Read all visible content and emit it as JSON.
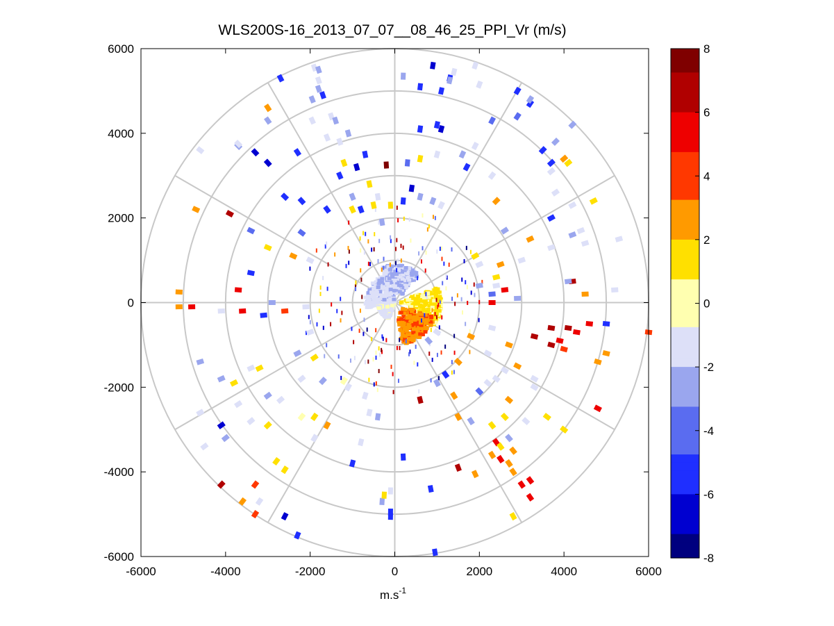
{
  "chart_data": {
    "type": "scatter",
    "subtype": "polar-ppi",
    "title": "WLS200S-16_2013_07_07__08_46_25_PPI_Vr (m/s)",
    "xlabel": "m.s",
    "xlabel_superscript": "-1",
    "ylabel": "",
    "xlim": [
      -6000,
      6000
    ],
    "ylim": [
      -6000,
      6000
    ],
    "x_ticks": [
      -6000,
      -4000,
      -2000,
      0,
      2000,
      4000,
      6000
    ],
    "y_ticks": [
      -6000,
      -4000,
      -2000,
      0,
      2000,
      4000,
      6000
    ],
    "x_tick_labels": [
      "-6000",
      "-4000",
      "-2000",
      "0",
      "2000",
      "4000",
      "6000"
    ],
    "y_tick_labels": [
      "-6000",
      "-4000",
      "-2000",
      "0",
      "2000",
      "4000",
      "6000"
    ],
    "polar_grid": {
      "ring_radii": [
        1000,
        2000,
        3000,
        4000,
        5000,
        6000
      ],
      "spoke_angles_deg": [
        0,
        30,
        60,
        90,
        120,
        150,
        180,
        210,
        240,
        270,
        300,
        330
      ],
      "grid": true
    },
    "colorbar": {
      "min": -8,
      "max": 8,
      "ticks": [
        8,
        6,
        4,
        2,
        0,
        -2,
        -4,
        -6,
        -8
      ],
      "tick_labels": [
        "8",
        "6",
        "4",
        "2",
        "0",
        "-2",
        "-4",
        "-6",
        "-8"
      ],
      "colors": [
        "#00007f",
        "#0000d0",
        "#1f2fff",
        "#5a6cf0",
        "#9aa6ee",
        "#dde0f8",
        "#ffffb0",
        "#ffe000",
        "#ff9a00",
        "#ff3800",
        "#ee0000",
        "#b00000",
        "#7f0000"
      ]
    },
    "points": [
      {
        "x": -1900,
        "y": 5550,
        "v": -1.5
      },
      {
        "x": -2700,
        "y": 5300,
        "v": -6
      },
      {
        "x": -1950,
        "y": 4800,
        "v": -3
      },
      {
        "x": -1500,
        "y": 4400,
        "v": -1.5
      },
      {
        "x": -3000,
        "y": 4300,
        "v": -3
      },
      {
        "x": -3700,
        "y": 3700,
        "v": -3
      },
      {
        "x": -3300,
        "y": 3550,
        "v": -7
      },
      {
        "x": -2300,
        "y": 3550,
        "v": -5
      },
      {
        "x": -1600,
        "y": 3900,
        "v": -1
      },
      {
        "x": -1300,
        "y": 3800,
        "v": -2
      },
      {
        "x": -3000,
        "y": 3300,
        "v": -7
      },
      {
        "x": -2600,
        "y": 2500,
        "v": -5
      },
      {
        "x": -1950,
        "y": 4300,
        "v": -1.5
      },
      {
        "x": -3000,
        "y": 4600,
        "v": 2.5
      },
      {
        "x": -2200,
        "y": 2400,
        "v": -6
      },
      {
        "x": -2200,
        "y": 1650,
        "v": -4
      },
      {
        "x": -3900,
        "y": 2100,
        "v": 6.5
      },
      {
        "x": -4700,
        "y": 2200,
        "v": 2
      },
      {
        "x": -3400,
        "y": 1700,
        "v": -4
      },
      {
        "x": -3000,
        "y": 1300,
        "v": 1
      },
      {
        "x": -3400,
        "y": 700,
        "v": -5
      },
      {
        "x": -2400,
        "y": 1100,
        "v": 3
      },
      {
        "x": -2000,
        "y": 1000,
        "v": -2
      },
      {
        "x": -3700,
        "y": 300,
        "v": 5
      },
      {
        "x": -5100,
        "y": 250,
        "v": 2
      },
      {
        "x": -5100,
        "y": -100,
        "v": 3
      },
      {
        "x": -4800,
        "y": -100,
        "v": 5
      },
      {
        "x": -4100,
        "y": -200,
        "v": -2
      },
      {
        "x": -3600,
        "y": -200,
        "v": 5
      },
      {
        "x": -3100,
        "y": -300,
        "v": -6
      },
      {
        "x": -2900,
        "y": 0,
        "v": -3
      },
      {
        "x": -2600,
        "y": -200,
        "v": 4
      },
      {
        "x": -2100,
        "y": -100,
        "v": -2
      },
      {
        "x": -2000,
        "y": -700,
        "v": -2
      },
      {
        "x": -1900,
        "y": -1300,
        "v": 1
      },
      {
        "x": -2300,
        "y": -1200,
        "v": -3
      },
      {
        "x": -2200,
        "y": -1800,
        "v": -2
      },
      {
        "x": -1700,
        "y": -1850,
        "v": -3
      },
      {
        "x": -1200,
        "y": -1850,
        "v": -0.5
      },
      {
        "x": -3200,
        "y": -1550,
        "v": 1
      },
      {
        "x": -3400,
        "y": -1550,
        "v": -1.5
      },
      {
        "x": -3000,
        "y": -2200,
        "v": -3
      },
      {
        "x": -2700,
        "y": -2300,
        "v": -2
      },
      {
        "x": -2200,
        "y": -2700,
        "v": -0.5
      },
      {
        "x": -3000,
        "y": -2900,
        "v": 1
      },
      {
        "x": -3400,
        "y": -2800,
        "v": -1
      },
      {
        "x": -4600,
        "y": -1400,
        "v": -3
      },
      {
        "x": -4100,
        "y": -1800,
        "v": -3
      },
      {
        "x": -3800,
        "y": -1900,
        "v": 1
      },
      {
        "x": -3700,
        "y": -2400,
        "v": -1.5
      },
      {
        "x": -4600,
        "y": -2600,
        "v": -1.5
      },
      {
        "x": -4100,
        "y": -2900,
        "v": -7
      },
      {
        "x": -4000,
        "y": -3200,
        "v": -3
      },
      {
        "x": -4500,
        "y": -3400,
        "v": -1
      },
      {
        "x": -2800,
        "y": -3750,
        "v": 1
      },
      {
        "x": -2600,
        "y": -3950,
        "v": 1
      },
      {
        "x": -4100,
        "y": -4300,
        "v": 6
      },
      {
        "x": -3300,
        "y": -4300,
        "v": 3.5
      },
      {
        "x": -3600,
        "y": -4700,
        "v": 3
      },
      {
        "x": -3200,
        "y": -4700,
        "v": -1
      },
      {
        "x": -3300,
        "y": -5000,
        "v": 4
      },
      {
        "x": -2600,
        "y": -5050,
        "v": -7
      },
      {
        "x": -2300,
        "y": -5500,
        "v": -6
      },
      {
        "x": -1900,
        "y": -3200,
        "v": -1
      },
      {
        "x": -1600,
        "y": -2900,
        "v": 2
      },
      {
        "x": -1900,
        "y": -2700,
        "v": 1
      },
      {
        "x": -1000,
        "y": -3800,
        "v": -5
      },
      {
        "x": -800,
        "y": -3300,
        "v": -2
      },
      {
        "x": -600,
        "y": -2600,
        "v": -2
      },
      {
        "x": -400,
        "y": -2700,
        "v": -3
      },
      {
        "x": -1100,
        "y": -2000,
        "v": -1
      },
      {
        "x": -700,
        "y": -2200,
        "v": -1
      },
      {
        "x": -300,
        "y": -4700,
        "v": -3
      },
      {
        "x": -250,
        "y": -4550,
        "v": 1
      },
      {
        "x": -100,
        "y": -4450,
        "v": -1
      },
      {
        "x": -100,
        "y": -4950,
        "v": -6
      },
      {
        "x": -100,
        "y": -5050,
        "v": -6
      },
      {
        "x": 200,
        "y": -3650,
        "v": -6
      },
      {
        "x": 850,
        "y": -4400,
        "v": -6
      },
      {
        "x": 950,
        "y": -5900,
        "v": -6
      },
      {
        "x": 1500,
        "y": -3900,
        "v": 7
      },
      {
        "x": 1900,
        "y": -4050,
        "v": 3
      },
      {
        "x": 2300,
        "y": -3600,
        "v": 2
      },
      {
        "x": 2400,
        "y": -3300,
        "v": 5
      },
      {
        "x": 2700,
        "y": -3200,
        "v": -3
      },
      {
        "x": 2300,
        "y": -2900,
        "v": 1
      },
      {
        "x": 1800,
        "y": -2800,
        "v": -3
      },
      {
        "x": 1500,
        "y": -2700,
        "v": 3
      },
      {
        "x": 2600,
        "y": -2700,
        "v": 1
      },
      {
        "x": 2700,
        "y": -2300,
        "v": 2
      },
      {
        "x": 3100,
        "y": -2800,
        "v": -2
      },
      {
        "x": 3600,
        "y": -2700,
        "v": 1
      },
      {
        "x": 4000,
        "y": -3000,
        "v": 1
      },
      {
        "x": 2500,
        "y": -3400,
        "v": 1
      },
      {
        "x": 2500,
        "y": -3700,
        "v": 5
      },
      {
        "x": 2700,
        "y": -3800,
        "v": 3
      },
      {
        "x": 2800,
        "y": -3500,
        "v": 3
      },
      {
        "x": 2800,
        "y": -4000,
        "v": 2
      },
      {
        "x": 3200,
        "y": -4200,
        "v": 5
      },
      {
        "x": 3000,
        "y": -4300,
        "v": 5
      },
      {
        "x": 3200,
        "y": -4600,
        "v": 5
      },
      {
        "x": 2800,
        "y": -5050,
        "v": 1
      },
      {
        "x": 1200,
        "y": -1700,
        "v": -5
      },
      {
        "x": 1000,
        "y": -1900,
        "v": -3
      },
      {
        "x": 1400,
        "y": -2200,
        "v": 3
      },
      {
        "x": 600,
        "y": -2300,
        "v": 6
      },
      {
        "x": 2000,
        "y": -2100,
        "v": -4
      },
      {
        "x": 2200,
        "y": -1900,
        "v": -2
      },
      {
        "x": 2400,
        "y": -1800,
        "v": -2
      },
      {
        "x": 2600,
        "y": -1600,
        "v": -1
      },
      {
        "x": 2900,
        "y": -1500,
        "v": 3
      },
      {
        "x": 3300,
        "y": -2000,
        "v": -2
      },
      {
        "x": 3300,
        "y": -1800,
        "v": -1.5
      },
      {
        "x": 3700,
        "y": -1000,
        "v": 6
      },
      {
        "x": 3900,
        "y": -900,
        "v": 5
      },
      {
        "x": 4100,
        "y": -600,
        "v": 7
      },
      {
        "x": 3700,
        "y": -600,
        "v": 7
      },
      {
        "x": 3300,
        "y": -800,
        "v": 6
      },
      {
        "x": 4000,
        "y": -1100,
        "v": 4
      },
      {
        "x": 4300,
        "y": -700,
        "v": 5
      },
      {
        "x": 4600,
        "y": -500,
        "v": 5
      },
      {
        "x": 5000,
        "y": -500,
        "v": -5
      },
      {
        "x": 5000,
        "y": -1200,
        "v": 3
      },
      {
        "x": 4800,
        "y": -1400,
        "v": 3
      },
      {
        "x": 4800,
        "y": -2500,
        "v": 5
      },
      {
        "x": 6000,
        "y": -700,
        "v": 4
      },
      {
        "x": 1000,
        "y": -700,
        "v": -2
      },
      {
        "x": 800,
        "y": -900,
        "v": -3
      },
      {
        "x": 2300,
        "y": -600,
        "v": -2
      },
      {
        "x": 2700,
        "y": -1000,
        "v": 3
      },
      {
        "x": 2200,
        "y": -1200,
        "v": -2
      },
      {
        "x": 1800,
        "y": -800,
        "v": 3
      },
      {
        "x": 1500,
        "y": -1400,
        "v": 2
      },
      {
        "x": 2300,
        "y": 0,
        "v": 5
      },
      {
        "x": 2300,
        "y": 200,
        "v": -4
      },
      {
        "x": 2000,
        "y": 400,
        "v": -3
      },
      {
        "x": 2400,
        "y": 600,
        "v": 1
      },
      {
        "x": 2000,
        "y": 900,
        "v": -2
      },
      {
        "x": 1900,
        "y": 1100,
        "v": 1
      },
      {
        "x": 2500,
        "y": 900,
        "v": 3
      },
      {
        "x": 2400,
        "y": 400,
        "v": -1
      },
      {
        "x": 2600,
        "y": 300,
        "v": 5
      },
      {
        "x": 2900,
        "y": 100,
        "v": -3
      },
      {
        "x": 3000,
        "y": 1000,
        "v": -2
      },
      {
        "x": 2600,
        "y": 1700,
        "v": -3
      },
      {
        "x": 3200,
        "y": 1500,
        "v": 2
      },
      {
        "x": 3700,
        "y": 1300,
        "v": -2
      },
      {
        "x": 4200,
        "y": 1600,
        "v": -3
      },
      {
        "x": 4500,
        "y": 1400,
        "v": -2
      },
      {
        "x": 5300,
        "y": 1500,
        "v": -1.5
      },
      {
        "x": 4400,
        "y": 1700,
        "v": -1
      },
      {
        "x": 4200,
        "y": 500,
        "v": 7
      },
      {
        "x": 4100,
        "y": 500,
        "v": -3
      },
      {
        "x": 4500,
        "y": 200,
        "v": 2
      },
      {
        "x": 5200,
        "y": 300,
        "v": -2
      },
      {
        "x": 3700,
        "y": 2000,
        "v": -5
      },
      {
        "x": 4200,
        "y": 2300,
        "v": -2
      },
      {
        "x": 4700,
        "y": 2400,
        "v": 1
      },
      {
        "x": 3800,
        "y": 2600,
        "v": -1.5
      },
      {
        "x": 3700,
        "y": 3100,
        "v": -1
      },
      {
        "x": 4000,
        "y": 3400,
        "v": 2
      },
      {
        "x": 4100,
        "y": 3300,
        "v": 1
      },
      {
        "x": 3700,
        "y": 3300,
        "v": -5
      },
      {
        "x": 3500,
        "y": 3600,
        "v": -6
      },
      {
        "x": 3800,
        "y": 3800,
        "v": -3
      },
      {
        "x": 4200,
        "y": 4200,
        "v": -3
      },
      {
        "x": 3200,
        "y": 4700,
        "v": -6
      },
      {
        "x": 2900,
        "y": 4400,
        "v": -4
      },
      {
        "x": 2300,
        "y": 4300,
        "v": -4
      },
      {
        "x": 1900,
        "y": 3700,
        "v": -1
      },
      {
        "x": 1600,
        "y": 3500,
        "v": -3
      },
      {
        "x": 1700,
        "y": 3200,
        "v": -6
      },
      {
        "x": 2300,
        "y": 3000,
        "v": -2
      },
      {
        "x": 2400,
        "y": 2400,
        "v": 3
      },
      {
        "x": 1000,
        "y": 4200,
        "v": -6
      },
      {
        "x": 1100,
        "y": 4100,
        "v": -7
      },
      {
        "x": 600,
        "y": 4100,
        "v": -6
      },
      {
        "x": 1000,
        "y": 3500,
        "v": -2
      },
      {
        "x": 600,
        "y": 3400,
        "v": 1
      },
      {
        "x": 300,
        "y": 3300,
        "v": -4
      },
      {
        "x": -200,
        "y": 3250,
        "v": 8
      },
      {
        "x": -700,
        "y": 3500,
        "v": -6
      },
      {
        "x": -900,
        "y": 3200,
        "v": -7
      },
      {
        "x": -1100,
        "y": 4000,
        "v": -3
      },
      {
        "x": -1200,
        "y": 3300,
        "v": 1
      },
      {
        "x": -1300,
        "y": 3000,
        "v": -5
      },
      {
        "x": -1000,
        "y": 2500,
        "v": -3
      },
      {
        "x": -600,
        "y": 2800,
        "v": 1
      },
      {
        "x": -400,
        "y": 2500,
        "v": -1.5
      },
      {
        "x": -500,
        "y": 2300,
        "v": 1
      },
      {
        "x": -100,
        "y": 2300,
        "v": 1
      },
      {
        "x": 200,
        "y": 2400,
        "v": -5
      },
      {
        "x": 400,
        "y": 2700,
        "v": -7
      },
      {
        "x": 600,
        "y": 2500,
        "v": -3
      },
      {
        "x": 900,
        "y": 2400,
        "v": -3
      },
      {
        "x": 1100,
        "y": 2300,
        "v": -2
      },
      {
        "x": -300,
        "y": 1900,
        "v": -3
      },
      {
        "x": -800,
        "y": 2200,
        "v": -6
      },
      {
        "x": -1000,
        "y": 2200,
        "v": 1
      },
      {
        "x": -1600,
        "y": 2200,
        "v": -5
      },
      {
        "x": 200,
        "y": 5350,
        "v": -3
      },
      {
        "x": 900,
        "y": 5600,
        "v": -7
      },
      {
        "x": 1300,
        "y": 5300,
        "v": -5
      },
      {
        "x": 1900,
        "y": 5600,
        "v": -1
      },
      {
        "x": 1100,
        "y": 5000,
        "v": -6
      },
      {
        "x": 600,
        "y": 5100,
        "v": -6
      },
      {
        "x": 1300,
        "y": 5250,
        "v": -3
      },
      {
        "x": 2000,
        "y": 5150,
        "v": -1.5
      },
      {
        "x": 2900,
        "y": 5000,
        "v": -6
      },
      {
        "x": 3200,
        "y": 4800,
        "v": -3
      },
      {
        "x": 1400,
        "y": 5450,
        "v": -2
      },
      {
        "x": -1800,
        "y": 5500,
        "v": -3
      },
      {
        "x": -1800,
        "y": 5250,
        "v": -2
      },
      {
        "x": -1700,
        "y": 4900,
        "v": -6
      },
      {
        "x": -1400,
        "y": 4300,
        "v": -3
      },
      {
        "x": -3700,
        "y": 3750,
        "v": -2
      },
      {
        "x": -4600,
        "y": 3600,
        "v": -2
      },
      {
        "x": -1800,
        "y": 5050,
        "v": -3
      }
    ],
    "central_cluster": [
      {
        "angle_from_deg": 90,
        "angle_to_deg": 190,
        "r_inner": 0,
        "r_outer": 700,
        "v": -1.5
      },
      {
        "angle_from_deg": 50,
        "angle_to_deg": 110,
        "r_inner": 200,
        "r_outer": 900,
        "v": -2
      },
      {
        "angle_from_deg": 190,
        "angle_to_deg": 250,
        "r_inner": 0,
        "r_outer": 400,
        "v": -1
      },
      {
        "angle_from_deg": 330,
        "angle_to_deg": 380,
        "r_inner": 100,
        "r_outer": 1100,
        "v": 1
      },
      {
        "angle_from_deg": 280,
        "angle_to_deg": 340,
        "r_inner": 200,
        "r_outer": 1000,
        "v": 3
      }
    ],
    "scatter_rings": [
      {
        "r": 1000,
        "count": 60
      },
      {
        "r": 1500,
        "count": 70
      },
      {
        "r": 2000,
        "count": 60
      }
    ]
  }
}
